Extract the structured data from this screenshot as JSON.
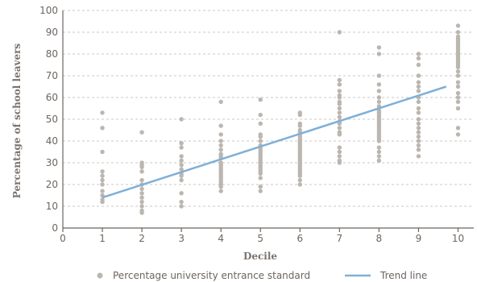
{
  "chart_data": {
    "type": "scatter",
    "title": "",
    "xlabel": "Decile",
    "ylabel": "Percentage of school leavers",
    "xlim": [
      0,
      10.5
    ],
    "ylim": [
      0,
      100
    ],
    "x_ticks": [
      "0",
      "1",
      "2",
      "3",
      "4",
      "5",
      "6",
      "7",
      "8",
      "9",
      "10"
    ],
    "y_ticks": [
      "0",
      "10",
      "20",
      "30",
      "40",
      "50",
      "60",
      "70",
      "80",
      "90",
      "100"
    ],
    "grid": true,
    "legend_position": "bottom",
    "colors": {
      "points": "#bbb6af",
      "trend": "#7fb0d8"
    },
    "series": [
      {
        "name": "Percentage university entrance standard",
        "kind": "scatter",
        "points": [
          [
            1,
            53
          ],
          [
            1,
            46
          ],
          [
            1,
            35
          ],
          [
            1,
            26
          ],
          [
            1,
            24
          ],
          [
            1,
            22
          ],
          [
            1,
            20
          ],
          [
            1,
            17
          ],
          [
            1,
            15
          ],
          [
            1,
            13
          ],
          [
            1,
            12
          ],
          [
            2,
            44
          ],
          [
            2,
            30
          ],
          [
            2,
            29
          ],
          [
            2,
            28
          ],
          [
            2,
            26
          ],
          [
            2,
            22
          ],
          [
            2,
            20
          ],
          [
            2,
            18
          ],
          [
            2,
            16
          ],
          [
            2,
            14
          ],
          [
            2,
            12
          ],
          [
            2,
            10
          ],
          [
            2,
            8
          ],
          [
            2,
            7
          ],
          [
            3,
            50
          ],
          [
            3,
            39
          ],
          [
            3,
            37
          ],
          [
            3,
            33
          ],
          [
            3,
            31
          ],
          [
            3,
            29
          ],
          [
            3,
            27
          ],
          [
            3,
            25
          ],
          [
            3,
            24
          ],
          [
            3,
            22
          ],
          [
            3,
            16
          ],
          [
            3,
            12
          ],
          [
            3,
            10
          ],
          [
            4,
            58
          ],
          [
            4,
            47
          ],
          [
            4,
            43
          ],
          [
            4,
            40
          ],
          [
            4,
            38
          ],
          [
            4,
            36
          ],
          [
            4,
            34
          ],
          [
            4,
            33
          ],
          [
            4,
            32
          ],
          [
            4,
            30
          ],
          [
            4,
            29
          ],
          [
            4,
            28
          ],
          [
            4,
            27
          ],
          [
            4,
            26
          ],
          [
            4,
            25
          ],
          [
            4,
            24
          ],
          [
            4,
            23
          ],
          [
            4,
            22
          ],
          [
            4,
            21
          ],
          [
            4,
            20
          ],
          [
            4,
            19
          ],
          [
            4,
            17
          ],
          [
            5,
            59
          ],
          [
            5,
            52
          ],
          [
            5,
            48
          ],
          [
            5,
            43
          ],
          [
            5,
            42
          ],
          [
            5,
            40
          ],
          [
            5,
            38
          ],
          [
            5,
            37
          ],
          [
            5,
            36
          ],
          [
            5,
            35
          ],
          [
            5,
            34
          ],
          [
            5,
            33
          ],
          [
            5,
            32
          ],
          [
            5,
            31
          ],
          [
            5,
            30
          ],
          [
            5,
            29
          ],
          [
            5,
            28
          ],
          [
            5,
            27
          ],
          [
            5,
            26
          ],
          [
            5,
            25
          ],
          [
            5,
            23
          ],
          [
            5,
            19
          ],
          [
            5,
            17
          ],
          [
            6,
            53
          ],
          [
            6,
            52
          ],
          [
            6,
            48
          ],
          [
            6,
            47
          ],
          [
            6,
            45
          ],
          [
            6,
            44
          ],
          [
            6,
            43
          ],
          [
            6,
            42
          ],
          [
            6,
            41
          ],
          [
            6,
            40
          ],
          [
            6,
            39
          ],
          [
            6,
            38
          ],
          [
            6,
            37
          ],
          [
            6,
            36
          ],
          [
            6,
            35
          ],
          [
            6,
            34
          ],
          [
            6,
            33
          ],
          [
            6,
            32
          ],
          [
            6,
            31
          ],
          [
            6,
            30
          ],
          [
            6,
            29
          ],
          [
            6,
            28
          ],
          [
            6,
            27
          ],
          [
            6,
            26
          ],
          [
            6,
            25
          ],
          [
            6,
            24
          ],
          [
            6,
            22
          ],
          [
            6,
            20
          ],
          [
            7,
            90
          ],
          [
            7,
            68
          ],
          [
            7,
            66
          ],
          [
            7,
            63
          ],
          [
            7,
            61
          ],
          [
            7,
            60
          ],
          [
            7,
            58
          ],
          [
            7,
            57
          ],
          [
            7,
            55
          ],
          [
            7,
            53
          ],
          [
            7,
            51
          ],
          [
            7,
            49
          ],
          [
            7,
            48
          ],
          [
            7,
            46
          ],
          [
            7,
            44
          ],
          [
            7,
            43
          ],
          [
            7,
            37
          ],
          [
            7,
            35
          ],
          [
            7,
            33
          ],
          [
            7,
            31
          ],
          [
            7,
            30
          ],
          [
            8,
            83
          ],
          [
            8,
            80
          ],
          [
            8,
            70
          ],
          [
            8,
            66
          ],
          [
            8,
            63
          ],
          [
            8,
            60
          ],
          [
            8,
            58
          ],
          [
            8,
            56
          ],
          [
            8,
            54
          ],
          [
            8,
            53
          ],
          [
            8,
            52
          ],
          [
            8,
            51
          ],
          [
            8,
            50
          ],
          [
            8,
            49
          ],
          [
            8,
            48
          ],
          [
            8,
            47
          ],
          [
            8,
            46
          ],
          [
            8,
            45
          ],
          [
            8,
            44
          ],
          [
            8,
            43
          ],
          [
            8,
            42
          ],
          [
            8,
            41
          ],
          [
            8,
            40
          ],
          [
            8,
            37
          ],
          [
            8,
            35
          ],
          [
            8,
            33
          ],
          [
            8,
            31
          ],
          [
            9,
            80
          ],
          [
            9,
            78
          ],
          [
            9,
            75
          ],
          [
            9,
            70
          ],
          [
            9,
            67
          ],
          [
            9,
            65
          ],
          [
            9,
            63
          ],
          [
            9,
            60
          ],
          [
            9,
            58
          ],
          [
            9,
            55
          ],
          [
            9,
            53
          ],
          [
            9,
            50
          ],
          [
            9,
            48
          ],
          [
            9,
            46
          ],
          [
            9,
            44
          ],
          [
            9,
            42
          ],
          [
            9,
            40
          ],
          [
            9,
            38
          ],
          [
            9,
            36
          ],
          [
            9,
            33
          ],
          [
            10,
            93
          ],
          [
            10,
            90
          ],
          [
            10,
            88
          ],
          [
            10,
            87
          ],
          [
            10,
            86
          ],
          [
            10,
            85
          ],
          [
            10,
            84
          ],
          [
            10,
            83
          ],
          [
            10,
            82
          ],
          [
            10,
            81
          ],
          [
            10,
            80
          ],
          [
            10,
            79
          ],
          [
            10,
            78
          ],
          [
            10,
            77
          ],
          [
            10,
            76
          ],
          [
            10,
            75
          ],
          [
            10,
            74
          ],
          [
            10,
            72
          ],
          [
            10,
            70
          ],
          [
            10,
            67
          ],
          [
            10,
            65
          ],
          [
            10,
            62
          ],
          [
            10,
            60
          ],
          [
            10,
            58
          ],
          [
            10,
            55
          ],
          [
            10,
            46
          ],
          [
            10,
            43
          ]
        ]
      },
      {
        "name": "Trend line",
        "kind": "line",
        "points": [
          [
            1,
            14
          ],
          [
            9.7,
            65
          ]
        ]
      }
    ]
  }
}
